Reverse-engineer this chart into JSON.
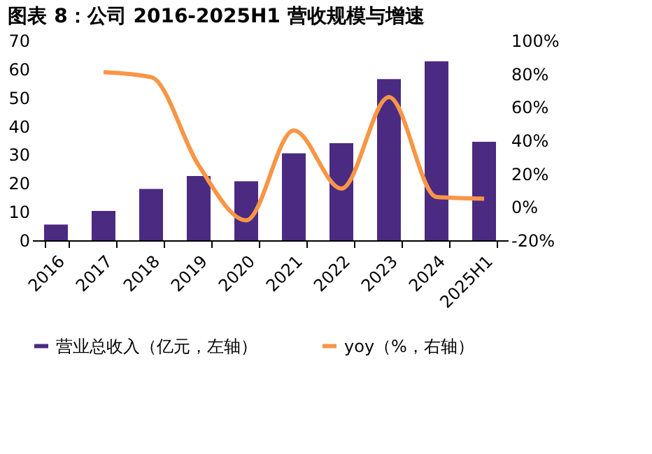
{
  "chart_data": {
    "type": "bar",
    "title": "图表 8：公司 2016-2025H1 营收规模与增速",
    "categories": [
      "2016",
      "2017",
      "2018",
      "2019",
      "2020",
      "2021",
      "2022",
      "2023",
      "2024",
      "2025H1"
    ],
    "series": [
      {
        "name": "营业总收入（亿元，左轴）",
        "color": "#4b2a82",
        "values": [
          5.5,
          10.3,
          18,
          22.5,
          20.7,
          30.5,
          34,
          56.5,
          62.7,
          34.5
        ]
      },
      {
        "name": "yoy（%，右轴）",
        "type": "line",
        "axis": "y2",
        "color": "#f79646",
        "values": [
          null,
          81,
          78,
          25,
          -8,
          46,
          11,
          66,
          6,
          5
        ]
      }
    ],
    "ylim": [
      0,
      70
    ],
    "yticks": [
      0,
      10,
      20,
      30,
      40,
      50,
      60,
      70
    ],
    "y2lim": [
      -20,
      100
    ],
    "y2ticks": [
      {
        "value": -20,
        "label": "-20%"
      },
      {
        "value": 0,
        "label": "0%"
      },
      {
        "value": 20,
        "label": "20%"
      },
      {
        "value": 40,
        "label": "40%"
      },
      {
        "value": 60,
        "label": "60%"
      },
      {
        "value": 80,
        "label": "80%"
      },
      {
        "value": 100,
        "label": "100%"
      }
    ],
    "grid": false,
    "legend": "bottom",
    "marker": "none",
    "line_style": "solid"
  }
}
